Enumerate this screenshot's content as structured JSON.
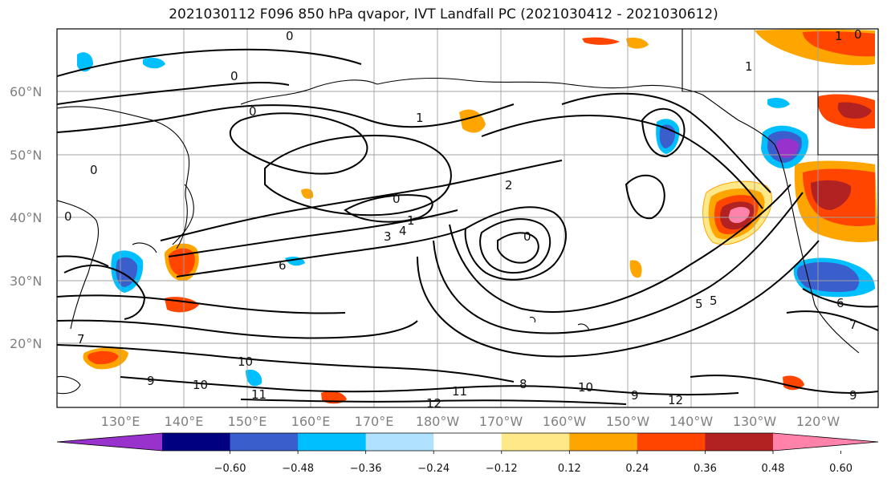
{
  "title": "2021030112 F096 850 hPa qvapor, IVT Landfall PC (2021030412 - 2021030612)",
  "map": {
    "lat_labels": [
      "60°N",
      "50°N",
      "40°N",
      "30°N",
      "20°N"
    ],
    "lon_labels": [
      "130°E",
      "140°E",
      "150°E",
      "160°E",
      "170°E",
      "180°W",
      "170°W",
      "160°W",
      "150°W",
      "140°W",
      "130°W",
      "120°W"
    ],
    "contour_labels": [
      "0",
      "0",
      "0",
      "0",
      "1",
      "2",
      "0",
      "1",
      "3",
      "4",
      "0",
      "6",
      "5",
      "5",
      "6",
      "7",
      "8",
      "9",
      "10",
      "10",
      "11",
      "11",
      "12",
      "12",
      "10",
      "9",
      "9",
      "7",
      "0",
      "1",
      "1",
      "0"
    ]
  },
  "colorbar": {
    "colors": [
      "#9932cc",
      "#000080",
      "#3a5fcd",
      "#00bfff",
      "#b0e2ff",
      "#ffffff",
      "#ffe888",
      "#ffa500",
      "#ff4500",
      "#b22222",
      "#ff82ab"
    ],
    "tick_labels": [
      "−0.60",
      "−0.48",
      "−0.36",
      "−0.24",
      "−0.12",
      "0.12",
      "0.24",
      "0.36",
      "0.48",
      "0.60"
    ]
  }
}
